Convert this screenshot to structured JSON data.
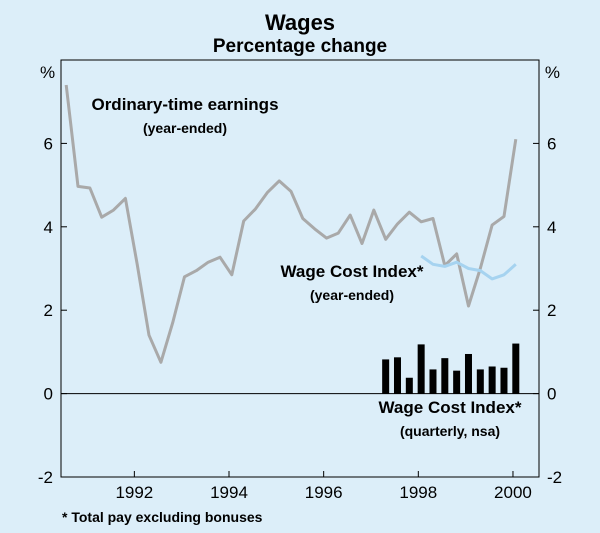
{
  "chart_data": {
    "type": "line",
    "title": "Wages",
    "subtitle": "Percentage change",
    "y_unit_left": "%",
    "y_unit_right": "%",
    "ylim": [
      -2,
      8
    ],
    "xlim": [
      1990.45,
      2000.55
    ],
    "y_ticks": [
      -2,
      0,
      2,
      4,
      6
    ],
    "x_ticks": [
      1992,
      1994,
      1996,
      1998,
      2000
    ],
    "grid": false,
    "series": [
      {
        "name": "Ordinary-time earnings",
        "name_sub": "(year-ended)",
        "kind": "line",
        "color": "#a9a9a9",
        "points": [
          [
            1990.56,
            7.4
          ],
          [
            1990.81,
            4.97
          ],
          [
            1991.06,
            4.93
          ],
          [
            1991.31,
            4.23
          ],
          [
            1991.56,
            4.4
          ],
          [
            1991.81,
            4.68
          ],
          [
            1992.06,
            3.1
          ],
          [
            1992.31,
            1.4
          ],
          [
            1992.56,
            0.75
          ],
          [
            1992.81,
            1.7
          ],
          [
            1993.06,
            2.8
          ],
          [
            1993.31,
            2.95
          ],
          [
            1993.56,
            3.15
          ],
          [
            1993.81,
            3.27
          ],
          [
            1994.06,
            2.85
          ],
          [
            1994.31,
            4.14
          ],
          [
            1994.56,
            4.43
          ],
          [
            1994.81,
            4.82
          ],
          [
            1995.06,
            5.1
          ],
          [
            1995.31,
            4.85
          ],
          [
            1995.56,
            4.2
          ],
          [
            1995.81,
            3.95
          ],
          [
            1996.06,
            3.73
          ],
          [
            1996.31,
            3.85
          ],
          [
            1996.56,
            4.28
          ],
          [
            1996.81,
            3.6
          ],
          [
            1997.06,
            4.4
          ],
          [
            1997.31,
            3.7
          ],
          [
            1997.56,
            4.07
          ],
          [
            1997.81,
            4.35
          ],
          [
            1998.06,
            4.12
          ],
          [
            1998.31,
            4.2
          ],
          [
            1998.56,
            3.07
          ],
          [
            1998.81,
            3.35
          ],
          [
            1999.06,
            2.1
          ],
          [
            1999.31,
            3.0
          ],
          [
            1999.56,
            4.04
          ],
          [
            1999.81,
            4.25
          ],
          [
            2000.06,
            6.1
          ]
        ]
      },
      {
        "name": "Wage Cost Index*",
        "name_sub": "(year-ended)",
        "kind": "line",
        "color": "#a6d3f0",
        "points": [
          [
            1998.06,
            3.3
          ],
          [
            1998.31,
            3.1
          ],
          [
            1998.56,
            3.05
          ],
          [
            1998.81,
            3.15
          ],
          [
            1999.06,
            3.0
          ],
          [
            1999.31,
            2.95
          ],
          [
            1999.56,
            2.75
          ],
          [
            1999.81,
            2.85
          ],
          [
            2000.06,
            3.1
          ]
        ]
      },
      {
        "name": "Wage Cost Index*",
        "name_sub": "(quarterly, nsa)",
        "kind": "bar",
        "color": "#000000",
        "points": [
          [
            1997.31,
            0.82
          ],
          [
            1997.56,
            0.87
          ],
          [
            1997.81,
            0.38
          ],
          [
            1998.06,
            1.18
          ],
          [
            1998.31,
            0.58
          ],
          [
            1998.56,
            0.85
          ],
          [
            1998.81,
            0.55
          ],
          [
            1999.06,
            0.95
          ],
          [
            1999.31,
            0.58
          ],
          [
            1999.56,
            0.65
          ],
          [
            1999.81,
            0.62
          ],
          [
            2000.06,
            1.2
          ]
        ]
      }
    ],
    "footnote": "* Total pay excluding bonuses"
  }
}
